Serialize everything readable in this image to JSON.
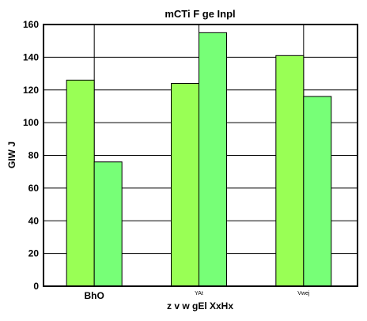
{
  "chart_data": {
    "type": "bar",
    "title": "mCTi F ge Inpl",
    "xlabel": "z v w gEl XxHx",
    "ylabel": "GIW J",
    "categories": [
      "BhO",
      "YAt",
      "Vwej"
    ],
    "series": [
      {
        "values": [
          126,
          124,
          141
        ],
        "color": "#99ff55"
      },
      {
        "values": [
          76,
          155,
          116
        ],
        "color": "#77ff77"
      }
    ],
    "ylim": [
      0,
      160
    ],
    "yticks": [
      0,
      20,
      40,
      60,
      80,
      100,
      120,
      140,
      160
    ],
    "grid": true,
    "legend": "none"
  }
}
